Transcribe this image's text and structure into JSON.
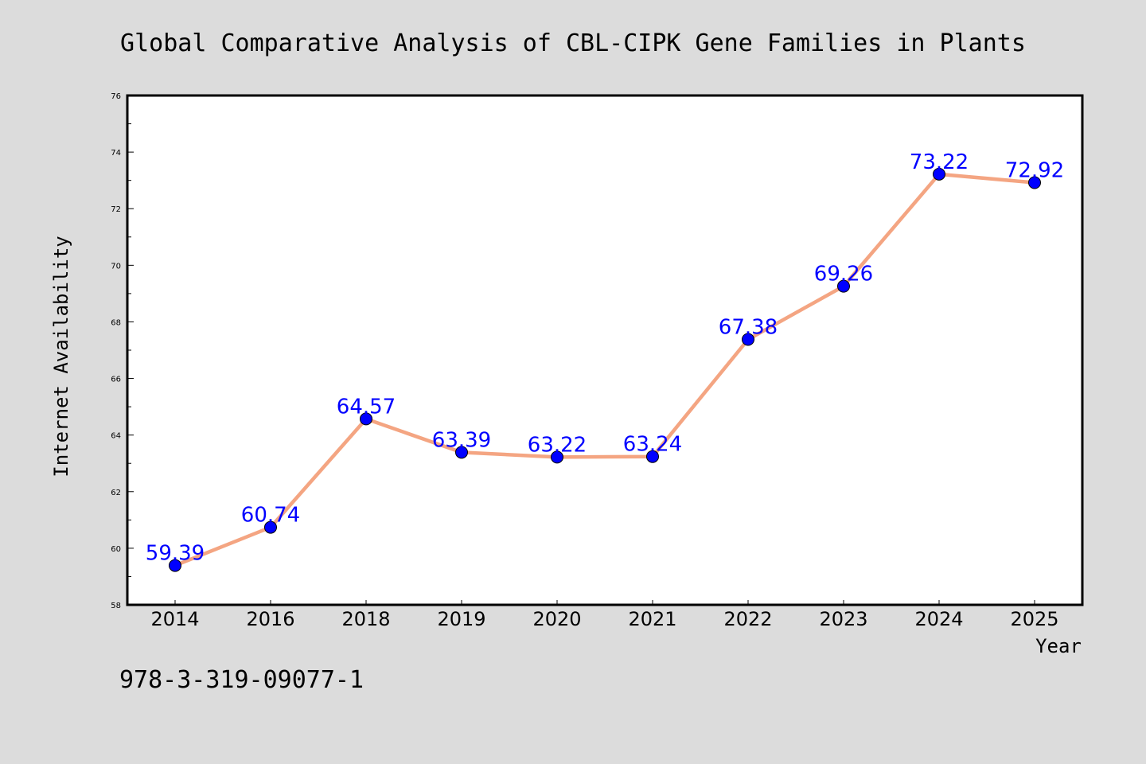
{
  "colors": {
    "background": "#dcdcdc",
    "plot_background": "#ffffff",
    "line": "#f4a582",
    "marker": "#0000ff",
    "label": "#0000ff"
  },
  "footer": {
    "isbn": "978-3-319-09077-1"
  },
  "chart_data": {
    "type": "line",
    "title": "Global Comparative Analysis of CBL-CIPK Gene Families in Plants",
    "xlabel": "Year",
    "ylabel": "Internet Availability",
    "categories": [
      "2014",
      "2016",
      "2018",
      "2019",
      "2020",
      "2021",
      "2022",
      "2023",
      "2024",
      "2025"
    ],
    "series": [
      {
        "values": [
          59.39,
          60.74,
          64.57,
          63.39,
          63.22,
          63.24,
          67.38,
          69.26,
          73.22,
          72.92
        ],
        "labels": [
          "59.39",
          "60.74",
          "64.57",
          "63.39",
          "63.22",
          "63.24",
          "67.38",
          "69.26",
          "73.22",
          "72.92"
        ]
      }
    ],
    "ylim": [
      58,
      76
    ],
    "yticks": [
      58,
      60,
      62,
      64,
      66,
      68,
      70,
      72,
      74,
      76
    ],
    "grid": false,
    "legend": "none",
    "marker": "circle"
  }
}
